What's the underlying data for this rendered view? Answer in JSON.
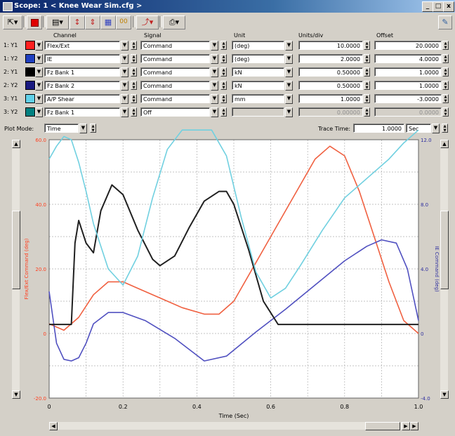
{
  "window": {
    "title": "Scope: 1 < Knee Wear Sim.cfg >",
    "buttons": [
      "_",
      "□",
      "x"
    ]
  },
  "toolbar": {
    "icons": [
      "pointer-icon",
      "record-icon",
      "properties-icon",
      "scale-icon",
      "scale-all-icon",
      "grid-icon",
      "digital-display-icon",
      "trace-icon",
      "print-icon",
      "help-icon"
    ]
  },
  "columns": {
    "channel": "Channel",
    "signal": "Signal",
    "unit": "Unit",
    "units_div": "Units/div",
    "offset": "Offset"
  },
  "channels": [
    {
      "label": "1: Y1",
      "color": "#ff2020",
      "channel": "Flex/Ext",
      "signal": "Command",
      "unit": "(deg)",
      "units_div": "10.0000",
      "offset": "20.0000",
      "disabled": false
    },
    {
      "label": "1: Y2",
      "color": "#2040c0",
      "channel": "IE",
      "signal": "Command",
      "unit": "(deg)",
      "units_div": "2.0000",
      "offset": "4.0000",
      "disabled": false
    },
    {
      "label": "2: Y1",
      "color": "#000000",
      "channel": "Fz Bank 1",
      "signal": "Command",
      "unit": "kN",
      "units_div": "0.50000",
      "offset": "1.0000",
      "disabled": false
    },
    {
      "label": "2: Y2",
      "color": "#1a1a80",
      "channel": "Fz Bank 2",
      "signal": "Command",
      "unit": "kN",
      "units_div": "0.50000",
      "offset": "1.0000",
      "disabled": false
    },
    {
      "label": "3: Y1",
      "color": "#60d0e8",
      "channel": "A/P Shear",
      "signal": "Command",
      "unit": "mm",
      "units_div": "1.0000",
      "offset": "-3.0000",
      "disabled": false
    },
    {
      "label": "3: Y2",
      "color": "#008080",
      "channel": "Fz Bank 1",
      "signal": "Off",
      "unit": "",
      "units_div": "0.00000",
      "offset": "0.0000",
      "disabled": true
    }
  ],
  "plot_mode": {
    "label": "Plot Mode:",
    "value": "Time"
  },
  "trace_time": {
    "label": "Trace Time:",
    "value": "1.0000",
    "unit": "Sec"
  },
  "chart_data": {
    "type": "line",
    "xlabel": "Time (Sec)",
    "ylabel_left": "Flex/Ext Command (deg)",
    "ylabel_right": "IE Command (deg)",
    "xlim": [
      0,
      1.0
    ],
    "ylim_left": [
      -20.0,
      60.0
    ],
    "ylim_right": [
      -4.0,
      12.0
    ],
    "x_ticks": [
      "0",
      "0.2",
      "0.4",
      "0.6",
      "0.8",
      "1.0"
    ],
    "y_ticks_left": [
      "-20.0",
      "0",
      "20.0",
      "40.0",
      "60.0"
    ],
    "y_ticks_right": [
      "-4.0",
      "0",
      "4.0",
      "8.0",
      "12.0"
    ],
    "grid": true,
    "colors": {
      "left_axis": "#ff4020",
      "right_axis": "#3030a0"
    },
    "series": [
      {
        "name": "Flex/Ext",
        "color": "#f06040",
        "x": [
          0,
          0.04,
          0.08,
          0.12,
          0.16,
          0.2,
          0.24,
          0.3,
          0.36,
          0.42,
          0.46,
          0.5,
          0.56,
          0.62,
          0.68,
          0.72,
          0.76,
          0.8,
          0.84,
          0.88,
          0.92,
          0.96,
          1.0
        ],
        "y": [
          3,
          1,
          5,
          12,
          16,
          16,
          14,
          11,
          8,
          6,
          6,
          10,
          22,
          34,
          46,
          54,
          58,
          55,
          44,
          30,
          16,
          4,
          0
        ]
      },
      {
        "name": "IE",
        "color": "#5050c0",
        "x": [
          0,
          0.02,
          0.04,
          0.06,
          0.08,
          0.1,
          0.12,
          0.16,
          0.2,
          0.26,
          0.34,
          0.42,
          0.48,
          0.56,
          0.64,
          0.72,
          0.8,
          0.86,
          0.9,
          0.94,
          0.97,
          1.0
        ],
        "y": [
          2.6,
          -0.6,
          -1.6,
          -1.7,
          -1.5,
          -0.6,
          0.6,
          1.3,
          1.3,
          0.8,
          -0.3,
          -1.7,
          -1.4,
          0.1,
          1.5,
          3.0,
          4.5,
          5.4,
          5.8,
          5.6,
          4.0,
          0.8
        ]
      },
      {
        "name": "Fz Bank 1",
        "color": "#202020",
        "x": [
          0,
          0.04,
          0.06,
          0.07,
          0.08,
          0.1,
          0.12,
          0.14,
          0.17,
          0.2,
          0.24,
          0.28,
          0.3,
          0.34,
          0.38,
          0.42,
          0.46,
          0.48,
          0.5,
          0.54,
          0.58,
          0.62,
          0.7,
          0.8,
          0.9,
          1.0
        ],
        "y": [
          0.14,
          0.14,
          0.14,
          1.4,
          1.75,
          1.4,
          1.25,
          1.9,
          2.3,
          2.15,
          1.6,
          1.15,
          1.05,
          1.2,
          1.65,
          2.05,
          2.2,
          2.2,
          2.0,
          1.3,
          0.5,
          0.14,
          0.14,
          0.14,
          0.14,
          0.14
        ]
      },
      {
        "name": "A/P Shear",
        "color": "#70d0e0",
        "x": [
          0,
          0.02,
          0.04,
          0.06,
          0.08,
          0.1,
          0.12,
          0.16,
          0.2,
          0.24,
          0.28,
          0.32,
          0.36,
          0.4,
          0.44,
          0.48,
          0.52,
          0.56,
          0.6,
          0.64,
          0.68,
          0.74,
          0.8,
          0.86,
          0.92,
          0.96,
          1.0
        ],
        "y": [
          0.4,
          0.8,
          1.1,
          1.0,
          0.3,
          -0.6,
          -1.6,
          -3.0,
          -3.5,
          -2.6,
          -0.8,
          0.7,
          1.3,
          1.3,
          1.3,
          0.5,
          -1.4,
          -3.1,
          -3.9,
          -3.6,
          -2.9,
          -1.8,
          -0.8,
          -0.2,
          0.4,
          0.9,
          1.3
        ]
      }
    ]
  }
}
